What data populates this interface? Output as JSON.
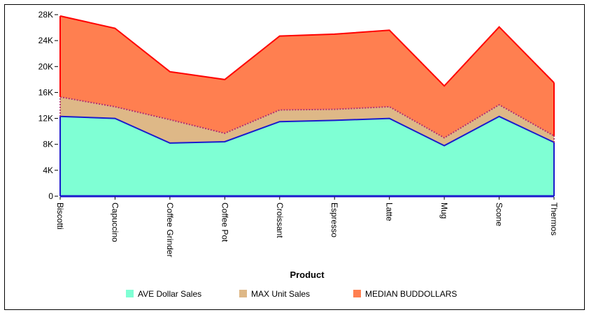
{
  "chart_data": {
    "type": "area",
    "stacked": true,
    "title": "",
    "xlabel": "Product",
    "ylabel": "",
    "categories": [
      "Biscotti",
      "Capuccino",
      "Coffee Grinder",
      "Coffee Pot",
      "Croissant",
      "Espresso",
      "Latte",
      "Mug",
      "Scone",
      "Thermos"
    ],
    "ylim": [
      0,
      28000
    ],
    "yticks": [
      0,
      4000,
      8000,
      12000,
      16000,
      20000,
      24000,
      28000
    ],
    "ytick_labels": [
      "0",
      "4K",
      "8K",
      "12K",
      "16K",
      "20K",
      "24K",
      "28K"
    ],
    "grid": false,
    "legend_position": "bottom",
    "series": [
      {
        "name": "AVE Dollar Sales",
        "color": "#7fffd4",
        "line_color": "#1a1acc",
        "values": [
          12300,
          12000,
          8200,
          8400,
          11500,
          11700,
          12000,
          7800,
          12300,
          8300
        ]
      },
      {
        "name": "MAX Unit Sales",
        "color": "#deb887",
        "line_color": "#b03070",
        "values": [
          3000,
          1800,
          3600,
          1300,
          1800,
          1700,
          1800,
          1200,
          1800,
          1000
        ]
      },
      {
        "name": "MEDIAN BUDDOLLARS",
        "color": "#ff7f50",
        "line_color": "#ff0000",
        "values": [
          12500,
          12100,
          7400,
          8300,
          11400,
          11600,
          11800,
          8000,
          12000,
          8200
        ]
      }
    ]
  }
}
